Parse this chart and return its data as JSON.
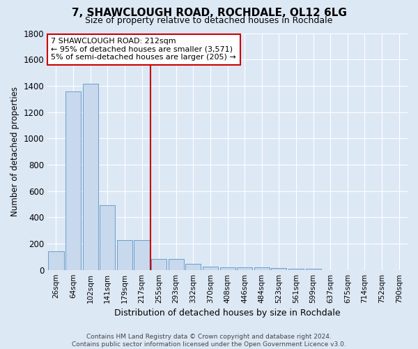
{
  "title": "7, SHAWCLOUGH ROAD, ROCHDALE, OL12 6LG",
  "subtitle": "Size of property relative to detached houses in Rochdale",
  "xlabel": "Distribution of detached houses by size in Rochdale",
  "ylabel": "Number of detached properties",
  "bar_labels": [
    "26sqm",
    "64sqm",
    "102sqm",
    "141sqm",
    "179sqm",
    "217sqm",
    "255sqm",
    "293sqm",
    "332sqm",
    "370sqm",
    "408sqm",
    "446sqm",
    "484sqm",
    "523sqm",
    "561sqm",
    "599sqm",
    "637sqm",
    "675sqm",
    "714sqm",
    "752sqm",
    "790sqm"
  ],
  "bar_values": [
    140,
    1355,
    1415,
    493,
    228,
    228,
    83,
    83,
    47,
    27,
    20,
    18,
    18,
    15,
    10,
    8,
    0,
    0,
    0,
    0,
    0
  ],
  "bar_color": "#c8d8ed",
  "bar_edge_color": "#6a9fc8",
  "bg_color": "#dde8f5",
  "grid_color": "#ffffff",
  "red_line_x": 5.5,
  "annotation_line1": "7 SHAWCLOUGH ROAD: 212sqm",
  "annotation_line2": "← 95% of detached houses are smaller (3,571)",
  "annotation_line3": "5% of semi-detached houses are larger (205) →",
  "annotation_box_color": "#ffffff",
  "annotation_box_edge": "#cc0000",
  "red_line_color": "#cc0000",
  "ylim": [
    0,
    1800
  ],
  "yticks": [
    0,
    200,
    400,
    600,
    800,
    1000,
    1200,
    1400,
    1600,
    1800
  ],
  "footer_text": "Contains HM Land Registry data © Crown copyright and database right 2024.\nContains public sector information licensed under the Open Government Licence v3.0."
}
